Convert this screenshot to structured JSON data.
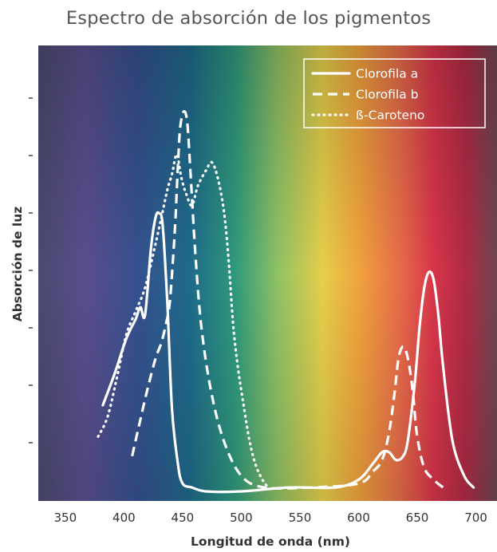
{
  "chart_data": {
    "type": "line",
    "title": "Espectro de absorción de los pigmentos",
    "xlabel": "Longitud de onda (nm)",
    "ylabel": "Absorción de luz",
    "xlim": [
      327,
      718
    ],
    "ylim": [
      0,
      100
    ],
    "x_ticks": [
      350,
      400,
      450,
      500,
      550,
      600,
      650,
      700
    ],
    "y_ticks_labeled": false,
    "legend_position": "top-right",
    "series": [
      {
        "name": "Clorofila a",
        "style": "solid",
        "color": "#ffffff",
        "x": [
          382,
          392,
          402,
          410,
          414,
          418,
          423,
          427,
          430,
          433,
          437,
          441,
          446,
          450,
          458,
          470,
          500,
          540,
          580,
          600,
          612,
          620,
          626,
          632,
          638,
          642,
          648,
          652,
          656,
          660,
          664,
          668,
          672,
          680,
          690,
          698
        ],
        "y": [
          22,
          30,
          39,
          44,
          47,
          45,
          62,
          70,
          71,
          68,
          48,
          21,
          7,
          2,
          1,
          0,
          0,
          1,
          1,
          3,
          7,
          10,
          10,
          8,
          9,
          13,
          28,
          42,
          52,
          56,
          54,
          45,
          32,
          13,
          4,
          1
        ]
      },
      {
        "name": "Clorofila b",
        "style": "dashed",
        "color": "#ffffff",
        "x": [
          407,
          413,
          420,
          427,
          432,
          436,
          439,
          442,
          444,
          446,
          448,
          451,
          454,
          457,
          461,
          466,
          474,
          485,
          500,
          520,
          560,
          600,
          612,
          620,
          626,
          631,
          634,
          638,
          642,
          646,
          650,
          656,
          664,
          672
        ],
        "y": [
          9,
          17,
          26,
          34,
          38,
          43,
          48,
          60,
          70,
          83,
          93,
          97,
          94,
          80,
          60,
          42,
          26,
          13,
          4,
          1,
          1,
          2,
          5,
          8,
          15,
          26,
          34,
          37,
          34,
          26,
          14,
          6,
          3,
          1
        ]
      },
      {
        "name": "ß-Caroteno",
        "style": "dotted",
        "color": "#ffffff",
        "x": [
          378,
          386,
          394,
          402,
          410,
          418,
          426,
          432,
          437,
          441,
          445,
          449,
          453,
          458,
          463,
          470,
          475,
          480,
          485,
          489,
          493,
          497,
          502,
          507,
          512,
          518,
          523
        ],
        "y": [
          14,
          19,
          29,
          40,
          46,
          52,
          62,
          70,
          77,
          81,
          86,
          80,
          76,
          73,
          78,
          82,
          84,
          80,
          72,
          60,
          43,
          32,
          22,
          13,
          7,
          3,
          1
        ]
      }
    ]
  }
}
